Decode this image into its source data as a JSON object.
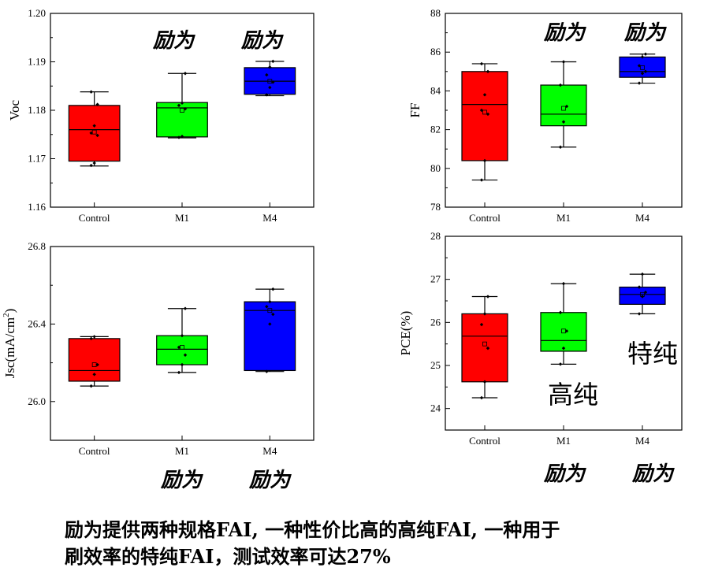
{
  "chart_data": [
    {
      "id": "voc",
      "type": "box",
      "ylabel": "Voc",
      "ylim": [
        1.16,
        1.2
      ],
      "yticks": [
        1.16,
        1.17,
        1.18,
        1.19,
        1.2
      ],
      "ytick_labels": [
        "1.16",
        "1.17",
        "1.18",
        "1.19",
        "1.20"
      ],
      "categories": [
        "Control",
        "M1",
        "M4"
      ],
      "boxes": [
        {
          "category": "Control",
          "color": "#ff0000",
          "whisker_low": 1.1685,
          "q1": 1.1695,
          "median": 1.176,
          "mean": 1.1755,
          "q3": 1.181,
          "whisker_high": 1.1838,
          "points": [
            1.1686,
            1.1691,
            1.1748,
            1.1753,
            1.1768,
            1.1812,
            1.1838
          ]
        },
        {
          "category": "M1",
          "color": "#00ff00",
          "whisker_low": 1.1743,
          "q1": 1.1745,
          "median": 1.1805,
          "mean": 1.18,
          "q3": 1.1816,
          "whisker_high": 1.1876,
          "points": [
            1.1744,
            1.1746,
            1.1803,
            1.181,
            1.1815,
            1.1876
          ]
        },
        {
          "category": "M4",
          "color": "#0000ff",
          "whisker_low": 1.183,
          "q1": 1.1833,
          "median": 1.186,
          "mean": 1.186,
          "q3": 1.1888,
          "whisker_high": 1.1901,
          "points": [
            1.1832,
            1.1847,
            1.1858,
            1.1873,
            1.1889,
            1.1901
          ]
        }
      ],
      "annotations": [
        "励为",
        "励为"
      ]
    },
    {
      "id": "ff",
      "type": "box",
      "ylabel": "FF",
      "ylim": [
        78,
        88
      ],
      "yticks": [
        78,
        80,
        82,
        84,
        86,
        88
      ],
      "ytick_labels": [
        "78",
        "80",
        "82",
        "84",
        "86",
        "88"
      ],
      "categories": [
        "Control",
        "M1",
        "M4"
      ],
      "boxes": [
        {
          "category": "Control",
          "color": "#ff0000",
          "whisker_low": 79.4,
          "q1": 80.4,
          "median": 83.3,
          "mean": 82.9,
          "q3": 85.0,
          "whisker_high": 85.4,
          "points": [
            79.4,
            80.4,
            82.8,
            83.0,
            83.8,
            85.0,
            85.4
          ]
        },
        {
          "category": "M1",
          "color": "#00ff00",
          "whisker_low": 81.1,
          "q1": 82.2,
          "median": 82.8,
          "mean": 83.1,
          "q3": 84.3,
          "whisker_high": 85.5,
          "points": [
            81.1,
            82.4,
            83.2,
            84.3,
            85.5
          ]
        },
        {
          "category": "M4",
          "color": "#0000ff",
          "whisker_low": 84.4,
          "q1": 84.7,
          "median": 85.0,
          "mean": 85.2,
          "q3": 85.75,
          "whisker_high": 85.9,
          "points": [
            84.4,
            84.9,
            85.0,
            85.3,
            85.75,
            85.9
          ]
        }
      ],
      "annotations": [
        "励为",
        "励为"
      ]
    },
    {
      "id": "jsc",
      "type": "box",
      "ylabel": "Jsc(mA/cm",
      "ylabel_superscript": "2",
      "ylabel_suffix": ")",
      "ylim": [
        25.8,
        26.8
      ],
      "yticks": [
        26.0,
        26.4,
        26.8
      ],
      "ytick_labels": [
        "26.0",
        "26.4",
        "26.8"
      ],
      "categories": [
        "Control",
        "M1",
        "M4"
      ],
      "boxes": [
        {
          "category": "Control",
          "color": "#ff0000",
          "whisker_low": 26.08,
          "q1": 26.105,
          "median": 26.16,
          "mean": 26.19,
          "q3": 26.325,
          "whisker_high": 26.335,
          "points": [
            26.08,
            26.14,
            26.19,
            26.325,
            26.335
          ]
        },
        {
          "category": "M1",
          "color": "#00ff00",
          "whisker_low": 26.15,
          "q1": 26.19,
          "median": 26.27,
          "mean": 26.28,
          "q3": 26.34,
          "whisker_high": 26.48,
          "points": [
            26.15,
            26.19,
            26.24,
            26.28,
            26.34,
            26.48
          ]
        },
        {
          "category": "M4",
          "color": "#0000ff",
          "whisker_low": 26.155,
          "q1": 26.16,
          "median": 26.47,
          "mean": 26.47,
          "q3": 26.515,
          "whisker_high": 26.58,
          "points": [
            26.155,
            26.4,
            26.45,
            26.49,
            26.515,
            26.58
          ]
        }
      ],
      "annotations": [
        "励为",
        "励为"
      ]
    },
    {
      "id": "pce",
      "type": "box",
      "ylabel": "PCE(%)",
      "ylim": [
        23.5,
        28
      ],
      "yticks": [
        24,
        25,
        26,
        27,
        28
      ],
      "ytick_labels": [
        "24",
        "25",
        "26",
        "27",
        "28"
      ],
      "categories": [
        "Control",
        "M1",
        "M4"
      ],
      "boxes": [
        {
          "category": "Control",
          "color": "#ff0000",
          "whisker_low": 24.25,
          "q1": 24.62,
          "median": 25.68,
          "mean": 25.5,
          "q3": 26.2,
          "whisker_high": 26.6,
          "points": [
            24.25,
            24.62,
            25.4,
            25.95,
            26.2,
            26.6
          ]
        },
        {
          "category": "M1",
          "color": "#00ff00",
          "whisker_low": 25.03,
          "q1": 25.33,
          "median": 25.58,
          "mean": 25.8,
          "q3": 26.23,
          "whisker_high": 26.9,
          "points": [
            25.03,
            25.4,
            25.8,
            26.23,
            26.9
          ]
        },
        {
          "category": "M4",
          "color": "#0000ff",
          "whisker_low": 26.2,
          "q1": 26.42,
          "median": 26.65,
          "mean": 26.65,
          "q3": 26.82,
          "whisker_high": 27.12,
          "points": [
            26.2,
            26.6,
            26.7,
            26.82,
            27.12
          ]
        }
      ],
      "annotations": [
        "高纯",
        "特纯",
        "励为",
        "励为"
      ]
    }
  ],
  "caption": {
    "line1": "励为提供两种规格FAI, 一种性价比高的高纯FAI, 一种用于",
    "line2": "刷效率的特纯FAI，测试效率可达27%"
  }
}
